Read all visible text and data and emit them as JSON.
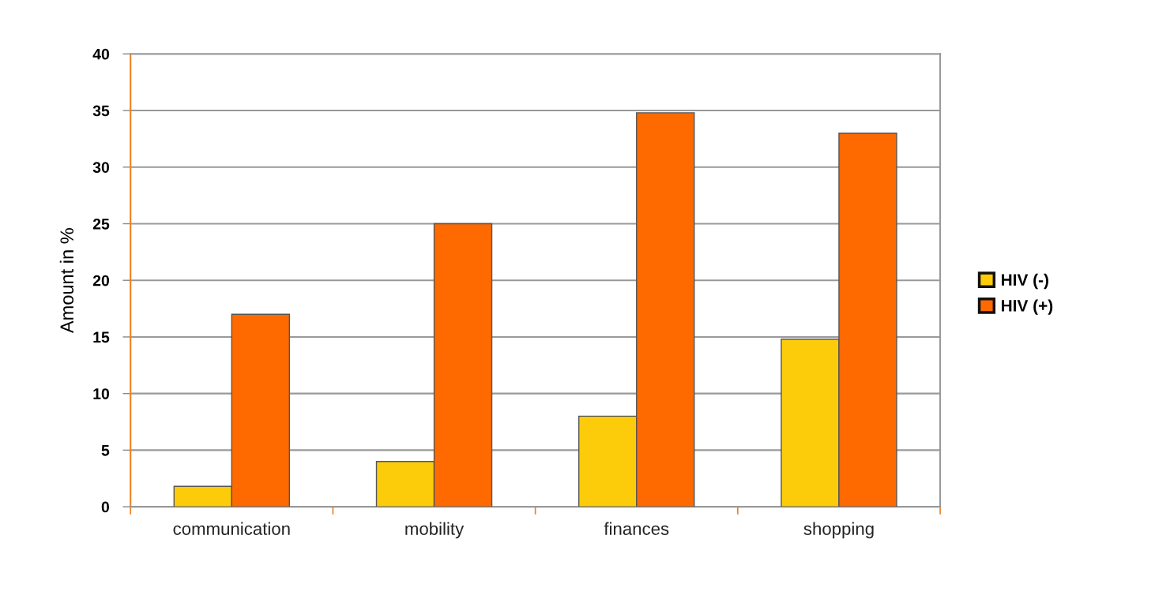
{
  "chart_data": {
    "type": "bar",
    "ylabel": "Amount in %",
    "categories": [
      "communication",
      "mobility",
      "finances",
      "shopping"
    ],
    "series": [
      {
        "name": "HIV (-)",
        "color": "#fccc0a",
        "values": [
          1.8,
          4,
          8,
          14.8
        ]
      },
      {
        "name": "HIV (+)",
        "color": "#ff6a00",
        "values": [
          17,
          25,
          34.8,
          33
        ]
      }
    ],
    "ylim": [
      0,
      40
    ],
    "yticks": [
      0,
      5,
      10,
      15,
      20,
      25,
      30,
      35,
      40
    ],
    "grid": "y",
    "legend": "right"
  }
}
